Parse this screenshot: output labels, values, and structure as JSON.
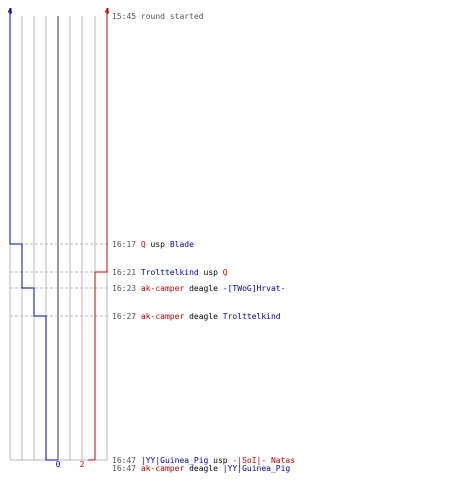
{
  "round": {
    "start_count_blue": "4",
    "start_count_red": "4",
    "end_count_blue": "0",
    "end_count_red": "2"
  },
  "colors": {
    "blue": "#0000cc",
    "red": "#cc0000",
    "grid": "#bbbbbb",
    "center": "#777777",
    "dash": "#bbbbbb",
    "text": "#000000",
    "time": "#555555"
  },
  "blue_steps": [
    {
      "row": 0,
      "lane": 0
    },
    {
      "row": 1,
      "lane": 1
    },
    {
      "row": 3,
      "lane": 2
    },
    {
      "row": 4,
      "lane": 3
    },
    {
      "row": 5,
      "lane": 4
    }
  ],
  "red_steps": [
    {
      "row": 0,
      "lane": 8
    },
    {
      "row": 2,
      "lane": 7
    }
  ],
  "events": [
    {
      "time": "15:45",
      "parts": [
        {
          "text": "round started",
          "color": "#555555"
        }
      ]
    },
    {
      "time": "16:17",
      "parts": [
        {
          "text": "Q",
          "color": "#cc0000"
        },
        {
          "text": " usp ",
          "color": "#000000"
        },
        {
          "text": "Blade",
          "color": "#0000cc"
        }
      ]
    },
    {
      "time": "16:21",
      "parts": [
        {
          "text": "Trolttelkind",
          "color": "#0000cc"
        },
        {
          "text": " usp ",
          "color": "#000000"
        },
        {
          "text": "Q",
          "color": "#cc0000"
        }
      ]
    },
    {
      "time": "16:23",
      "parts": [
        {
          "text": "ak-camper",
          "color": "#cc0000"
        },
        {
          "text": " deagle ",
          "color": "#000000"
        },
        {
          "text": "-[TWoG]Hrvat-",
          "color": "#0000cc"
        }
      ]
    },
    {
      "time": "16:27",
      "parts": [
        {
          "text": "ak-camper",
          "color": "#cc0000"
        },
        {
          "text": " deagle ",
          "color": "#000000"
        },
        {
          "text": "Trolttelkind",
          "color": "#0000cc"
        }
      ]
    },
    {
      "time": "16:47",
      "parts": [
        {
          "text": "|YY|Guinea_Pig",
          "color": "#0000cc"
        },
        {
          "text": " usp ",
          "color": "#000000"
        },
        {
          "text": "-|SoI|- Natas",
          "color": "#cc0000"
        }
      ]
    },
    {
      "time": "16:47",
      "parts": [
        {
          "text": "ak-camper",
          "color": "#cc0000"
        },
        {
          "text": " deagle ",
          "color": "#000000"
        },
        {
          "text": "|YY|Guinea_Pig",
          "color": "#0000cc"
        }
      ]
    }
  ]
}
